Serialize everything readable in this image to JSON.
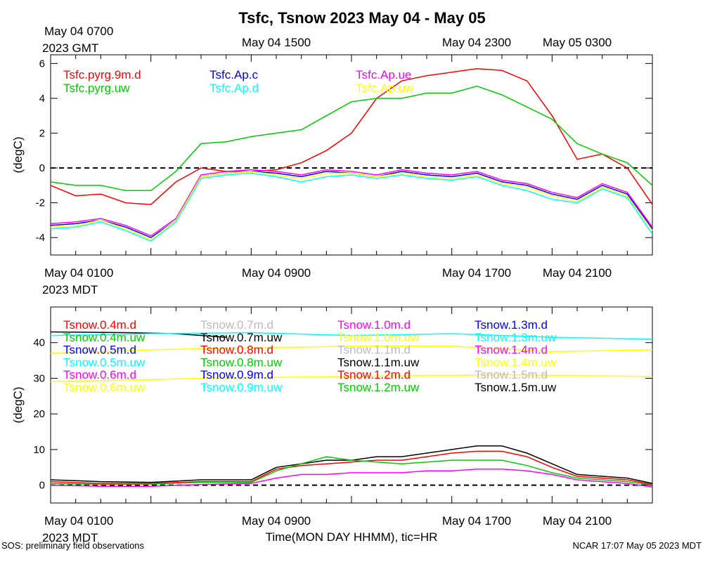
{
  "title": "Tsfc, Tsnow 2023 May 04 - May 05",
  "footer_left": "SOS: preliminary field observations",
  "footer_right": "NCAR 17:07 May 05 2023 MDT",
  "xlabel": "Time(MON DAY HHMM), tic=HR",
  "top_gmt_labels": {
    "first_line1": "May 04 0700",
    "first_line2": "2023 GMT",
    "l2": "May 04 1500",
    "l3": "May 04 2300",
    "l4": "May 05 0300"
  },
  "mid_mdt_labels": {
    "first_line1": "May 04 0100",
    "first_line2": "2023 MDT",
    "l2": "May 04 0900",
    "l3": "May 04 1700",
    "l4": "May 04 2100"
  },
  "bottom_mdt_labels": {
    "first_line1": "May 04 0100",
    "first_line2": "2023 MDT",
    "l2": "May 04 0900",
    "l3": "May 04 1700",
    "l4": "May 04 2100"
  },
  "colors": {
    "red": "#ff0000",
    "green": "#00cc00",
    "blue": "#0000ff",
    "cyan": "#00ffff",
    "magenta": "#ff00ff",
    "yellow": "#ffff00",
    "gray": "#bbbbbb",
    "black": "#000000"
  },
  "chart_data": [
    {
      "type": "line",
      "ylabel": "(degC)",
      "ylim": [
        -5,
        6.5
      ],
      "yticks": [
        6,
        4,
        2,
        0,
        -2,
        -4
      ],
      "x_range_hours": [
        0,
        24
      ],
      "reference_line": 0,
      "legend": [
        {
          "name": "Tsfc.pyrg.9m.d",
          "color": "#ff0000"
        },
        {
          "name": "Tsfc.pyrg.uw",
          "color": "#00cc00"
        },
        {
          "name": "Tsfc.Ap.c",
          "color": "#0000ff"
        },
        {
          "name": "Tsfc.Ap.d",
          "color": "#00ffff"
        },
        {
          "name": "Tsfc.Ap.ue",
          "color": "#ff00ff"
        },
        {
          "name": "Tsfc.Ap.uw",
          "color": "#ffff00"
        }
      ],
      "series": [
        {
          "name": "Tsfc.pyrg.9m.d",
          "x": [
            0,
            1,
            2,
            3,
            4,
            5,
            6,
            7,
            8,
            9,
            10,
            11,
            12,
            13,
            14,
            15,
            16,
            17,
            18,
            19,
            20,
            21,
            22,
            23,
            24
          ],
          "values": [
            -1.0,
            -1.6,
            -1.5,
            -2.0,
            -2.1,
            -0.8,
            0.0,
            -0.2,
            -0.2,
            -0.1,
            0.3,
            1.0,
            2.0,
            4.0,
            5.0,
            5.3,
            5.5,
            5.7,
            5.6,
            5.0,
            3.0,
            0.5,
            0.8,
            0.0,
            -2.1
          ]
        },
        {
          "name": "Tsfc.pyrg.uw",
          "x": [
            0,
            1,
            2,
            3,
            4,
            5,
            6,
            7,
            8,
            9,
            10,
            11,
            12,
            13,
            14,
            15,
            16,
            17,
            18,
            19,
            20,
            21,
            22,
            23,
            24
          ],
          "values": [
            -0.8,
            -1.0,
            -1.0,
            -1.3,
            -1.3,
            -0.2,
            1.4,
            1.5,
            1.8,
            2.0,
            2.2,
            3.0,
            3.8,
            4.0,
            4.0,
            4.3,
            4.3,
            4.7,
            4.2,
            3.5,
            2.8,
            1.4,
            0.8,
            0.3,
            -1.0
          ]
        },
        {
          "name": "Tsfc.Ap.c",
          "x": [
            0,
            1,
            2,
            3,
            4,
            5,
            6,
            7,
            8,
            9,
            10,
            11,
            12,
            13,
            14,
            15,
            16,
            17,
            18,
            19,
            20,
            21,
            22,
            23,
            24
          ],
          "values": [
            -3.3,
            -3.2,
            -3.0,
            -3.4,
            -4.0,
            -3.0,
            -0.5,
            -0.3,
            -0.2,
            -0.3,
            -0.5,
            -0.2,
            -0.3,
            -0.5,
            -0.2,
            -0.4,
            -0.5,
            -0.3,
            -0.8,
            -1.0,
            -1.5,
            -1.8,
            -1.0,
            -1.5,
            -3.5
          ]
        },
        {
          "name": "Tsfc.Ap.d",
          "x": [
            0,
            1,
            2,
            3,
            4,
            5,
            6,
            7,
            8,
            9,
            10,
            11,
            12,
            13,
            14,
            15,
            16,
            17,
            18,
            19,
            20,
            21,
            22,
            23,
            24
          ],
          "values": [
            -3.5,
            -3.4,
            -3.1,
            -3.6,
            -4.2,
            -3.1,
            -0.6,
            -0.4,
            -0.3,
            -0.5,
            -0.8,
            -0.5,
            -0.4,
            -0.6,
            -0.4,
            -0.6,
            -0.7,
            -0.5,
            -1.0,
            -1.3,
            -1.8,
            -2.0,
            -1.2,
            -1.7,
            -3.8
          ]
        },
        {
          "name": "Tsfc.Ap.ue",
          "x": [
            0,
            1,
            2,
            3,
            4,
            5,
            6,
            7,
            8,
            9,
            10,
            11,
            12,
            13,
            14,
            15,
            16,
            17,
            18,
            19,
            20,
            21,
            22,
            23,
            24
          ],
          "values": [
            -3.2,
            -3.1,
            -2.9,
            -3.3,
            -3.9,
            -2.9,
            -0.4,
            -0.2,
            -0.1,
            -0.2,
            -0.4,
            -0.1,
            -0.2,
            -0.4,
            -0.1,
            -0.3,
            -0.4,
            -0.2,
            -0.7,
            -0.9,
            -1.4,
            -1.7,
            -0.9,
            -1.4,
            -3.4
          ]
        },
        {
          "name": "Tsfc.Ap.uw",
          "x": [
            0,
            1,
            2,
            3,
            4,
            5,
            6,
            7,
            8,
            9,
            10,
            11,
            12,
            13,
            14,
            15,
            16,
            17,
            18,
            19,
            20,
            21,
            22,
            23,
            24
          ],
          "values": [
            -3.4,
            -3.3,
            -3.0,
            -3.5,
            -4.1,
            -3.0,
            -0.5,
            -0.3,
            -0.2,
            -0.4,
            -0.6,
            -0.3,
            -0.3,
            -0.5,
            -0.3,
            -0.5,
            -0.6,
            -0.4,
            -0.9,
            -1.1,
            -1.6,
            -1.9,
            -1.1,
            -1.6,
            -3.6
          ]
        }
      ]
    },
    {
      "type": "line",
      "ylabel": "(degC)",
      "ylim": [
        -5,
        50
      ],
      "yticks": [
        40,
        30,
        20,
        10,
        0
      ],
      "x_range_hours": [
        0,
        24
      ],
      "reference_line": 0,
      "legend": [
        {
          "name": "Tsnow.0.4m.d",
          "color": "#ff0000"
        },
        {
          "name": "Tsnow.0.4m.uw",
          "color": "#00cc00"
        },
        {
          "name": "Tsnow.0.5m.d",
          "color": "#0000ff"
        },
        {
          "name": "Tsnow.0.5m.uw",
          "color": "#00ffff"
        },
        {
          "name": "Tsnow.0.6m.d",
          "color": "#ff00ff"
        },
        {
          "name": "Tsnow.0.6m.uw",
          "color": "#ffff00"
        },
        {
          "name": "Tsnow.0.7m.d",
          "color": "#bbbbbb"
        },
        {
          "name": "Tsnow.0.7m.uw",
          "color": "#000000"
        },
        {
          "name": "Tsnow.0.8m.d",
          "color": "#ff0000"
        },
        {
          "name": "Tsnow.0.8m.uw",
          "color": "#00cc00"
        },
        {
          "name": "Tsnow.0.9m.d",
          "color": "#0000ff"
        },
        {
          "name": "Tsnow.0.9m.uw",
          "color": "#00ffff"
        },
        {
          "name": "Tsnow.1.0m.d",
          "color": "#ff00ff"
        },
        {
          "name": "Tsnow.1.0m.uw",
          "color": "#ffff00"
        },
        {
          "name": "Tsnow.1.1m.d",
          "color": "#bbbbbb"
        },
        {
          "name": "Tsnow.1.1m.uw",
          "color": "#000000"
        },
        {
          "name": "Tsnow.1.2m.d",
          "color": "#ff0000"
        },
        {
          "name": "Tsnow.1.2m.uw",
          "color": "#00cc00"
        },
        {
          "name": "Tsnow.1.3m.d",
          "color": "#0000ff"
        },
        {
          "name": "Tsnow.1.3m.uw",
          "color": "#00ffff"
        },
        {
          "name": "Tsnow.1.4m.d",
          "color": "#ff00ff"
        },
        {
          "name": "Tsnow.1.4m.uw",
          "color": "#ffff00"
        },
        {
          "name": "Tsnow.1.5m.d",
          "color": "#bbbbbb"
        },
        {
          "name": "Tsnow.1.5m.uw",
          "color": "#000000"
        }
      ],
      "series": [
        {
          "name": "Tsnow.0.7m.uw",
          "x": [
            0,
            3,
            5,
            7
          ],
          "values": [
            43,
            42.8,
            42.5,
            41.5
          ]
        },
        {
          "name": "Tsnow.1.3m.uw",
          "x": [
            0,
            4,
            8,
            12,
            16,
            20,
            24
          ],
          "values": [
            42,
            42.5,
            42.8,
            42,
            42.5,
            41.5,
            41
          ]
        },
        {
          "name": "Tsnow.1.4m.uw",
          "x": [
            0,
            4,
            8,
            12,
            16,
            20,
            24
          ],
          "values": [
            37,
            38,
            38.5,
            39,
            39,
            37.5,
            38
          ]
        },
        {
          "name": "Tsnow.0.6m.uw",
          "x": [
            0,
            6,
            12,
            18,
            24
          ],
          "values": [
            29,
            30,
            30.5,
            31,
            30.5
          ]
        },
        {
          "name": "Tsnow.1.1m.uw",
          "x": [
            0,
            2,
            4,
            6,
            8,
            9,
            10,
            11,
            12,
            13,
            14,
            15,
            16,
            17,
            18,
            19,
            20,
            21,
            22,
            23,
            24
          ],
          "values": [
            1.5,
            1,
            0.8,
            1.5,
            1.5,
            5,
            6,
            7,
            7,
            8,
            8,
            9,
            10,
            11,
            11,
            9,
            6,
            3,
            2.5,
            2,
            0.5
          ]
        },
        {
          "name": "Tsnow.0.4m.d",
          "x": [
            0,
            2,
            4,
            6,
            8,
            9,
            10,
            11,
            12,
            13,
            14,
            15,
            16,
            17,
            18,
            19,
            20,
            21,
            22,
            23,
            24
          ],
          "values": [
            1,
            0.5,
            0.5,
            1,
            1,
            4.5,
            5.5,
            6,
            6.5,
            7,
            7,
            8,
            9,
            9.5,
            9.5,
            8,
            5,
            2.5,
            2,
            1.5,
            0.2
          ]
        },
        {
          "name": "Tsnow.0.4m.uw",
          "x": [
            0,
            2,
            4,
            6,
            8,
            9,
            10,
            11,
            12,
            13,
            14,
            15,
            16,
            17,
            18,
            19,
            20,
            21,
            22,
            23,
            24
          ],
          "values": [
            0.5,
            0.2,
            0.3,
            0.8,
            0.8,
            4,
            6,
            8,
            7,
            6.5,
            6,
            6.5,
            7,
            7,
            7,
            5.5,
            3.5,
            2,
            1.5,
            1,
            0
          ]
        },
        {
          "name": "Tsnow.1.0m.d",
          "x": [
            0,
            2,
            4,
            6,
            8,
            9,
            10,
            11,
            12,
            13,
            14,
            15,
            16,
            17,
            18,
            19,
            20,
            21,
            22,
            23,
            24
          ],
          "values": [
            0,
            -0.3,
            -0.3,
            0.2,
            0.5,
            2,
            3,
            3,
            3.5,
            3.5,
            3.5,
            4,
            4,
            4.5,
            4.5,
            4,
            3,
            1.5,
            1,
            0.5,
            -0.5
          ]
        }
      ]
    }
  ]
}
